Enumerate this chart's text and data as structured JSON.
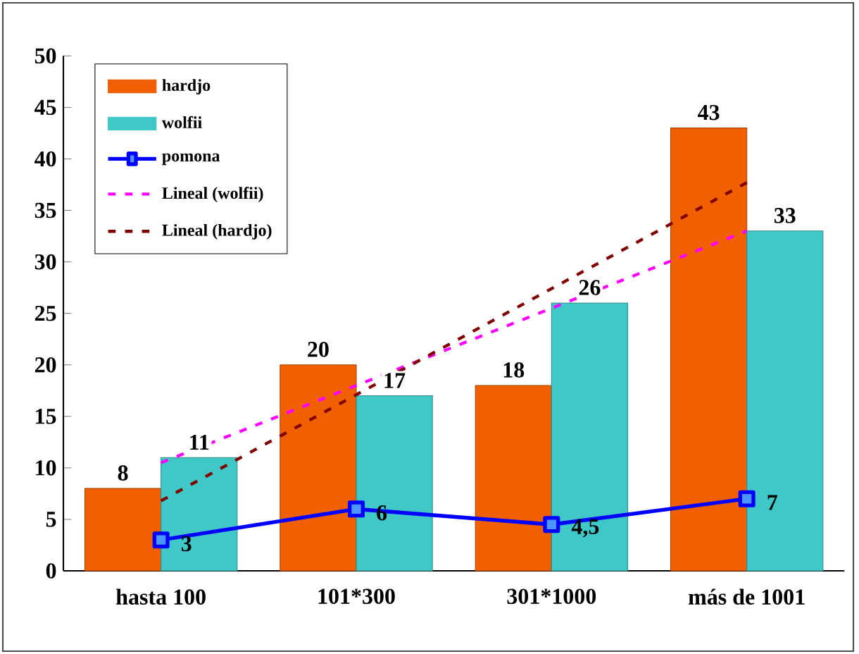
{
  "chart_data": {
    "type": "bar",
    "categories": [
      "hasta 100",
      "101*300",
      "301*1000",
      "más de 1001"
    ],
    "series": [
      {
        "name": "hardjo",
        "color": "#f06000",
        "values": [
          8,
          20,
          18,
          43
        ],
        "value_labels": [
          "8",
          "20",
          "18",
          "43"
        ]
      },
      {
        "name": "wolfii",
        "color": "#40c8c8",
        "values": [
          11,
          17,
          26,
          33
        ],
        "value_labels": [
          "11",
          "17",
          "26",
          "33"
        ]
      },
      {
        "name": "pomona",
        "type": "line",
        "color": "#0000ff",
        "marker": "square",
        "line_style": "solid",
        "values": [
          3,
          6,
          4.5,
          7
        ],
        "value_labels": [
          "3",
          "6",
          "4,5",
          "7"
        ]
      },
      {
        "name": "Lineal (wolfii)",
        "type": "line",
        "color": "#ff00ff",
        "marker": "none",
        "line_style": "dashed",
        "values": [
          10.5,
          18,
          25.5,
          33
        ]
      },
      {
        "name": "Lineal (hardjo)",
        "type": "line",
        "color": "#800000",
        "marker": "none",
        "line_style": "dashed",
        "values": [
          6.8,
          17.1,
          27.4,
          37.7
        ]
      }
    ],
    "ylim": [
      0,
      50
    ],
    "yticks": [
      0,
      5,
      10,
      15,
      20,
      25,
      30,
      35,
      40,
      45,
      50
    ],
    "legend": "top left"
  }
}
